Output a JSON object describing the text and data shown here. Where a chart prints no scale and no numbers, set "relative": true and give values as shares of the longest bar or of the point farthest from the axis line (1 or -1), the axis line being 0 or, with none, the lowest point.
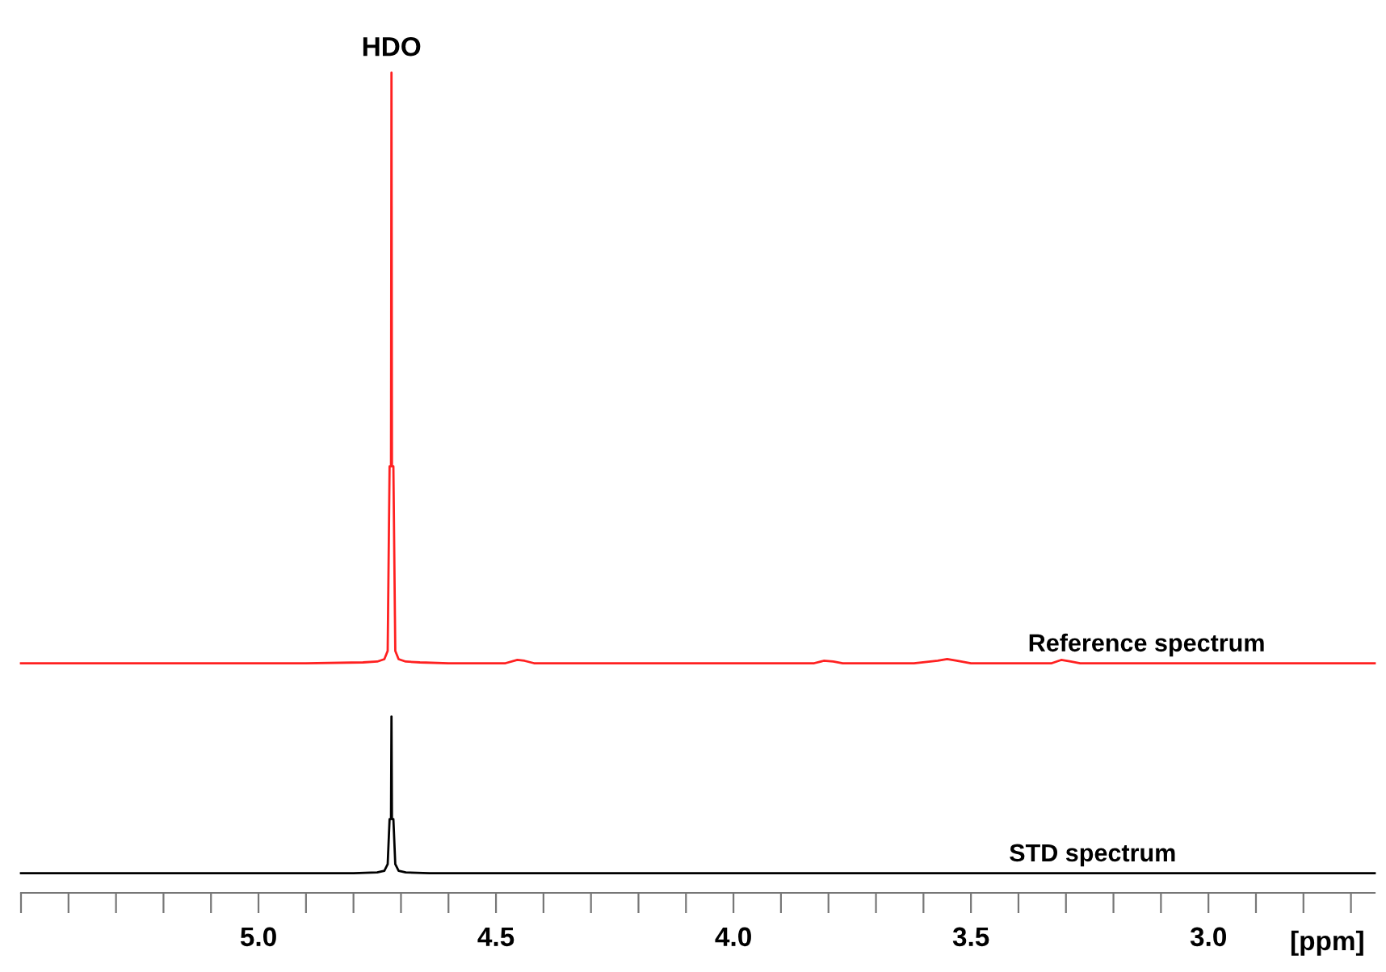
{
  "chart_data": {
    "type": "line",
    "relative": true,
    "xlim": [
      5.5,
      2.65
    ],
    "xlabel": "[ppm]",
    "annotations": [
      {
        "text": "HDO",
        "x": 4.72,
        "y": 1
      }
    ],
    "xticks": [
      {
        "value": 5.5,
        "label": null
      },
      {
        "value": 5.4,
        "label": null
      },
      {
        "value": 5.3,
        "label": null
      },
      {
        "value": 5.2,
        "label": null
      },
      {
        "value": 5.1,
        "label": null
      },
      {
        "value": 5.0,
        "label": "5.0"
      },
      {
        "value": 4.9,
        "label": null
      },
      {
        "value": 4.8,
        "label": null
      },
      {
        "value": 4.7,
        "label": null
      },
      {
        "value": 4.6,
        "label": null
      },
      4.5,
      {
        "value": 4.4,
        "label": null
      },
      {
        "value": 4.3,
        "label": null
      },
      {
        "value": 4.2,
        "label": null
      },
      {
        "value": 4.1,
        "label": null
      },
      {
        "value": 4.0,
        "label": "4.0"
      },
      {
        "value": 3.9,
        "label": null
      },
      {
        "value": 3.8,
        "label": null
      },
      {
        "value": 3.7,
        "label": null
      },
      {
        "value": 3.6,
        "label": null
      },
      3.5,
      {
        "value": 3.4,
        "label": null
      },
      {
        "value": 3.3,
        "label": null
      },
      {
        "value": 3.2,
        "label": null
      },
      {
        "value": 3.1,
        "label": null
      },
      {
        "value": 3.0,
        "label": "3.0"
      },
      {
        "value": 2.9,
        "label": null
      },
      {
        "value": 2.8,
        "label": null
      },
      {
        "value": 2.7,
        "label": null
      }
    ],
    "series": [
      {
        "name": "Reference spectrum",
        "color": "#ff2020",
        "x": [
          5.5,
          4.9,
          4.78,
          4.75,
          4.735,
          4.728,
          4.724,
          4.721,
          4.72,
          4.719,
          4.716,
          4.712,
          4.705,
          4.69,
          4.66,
          4.6,
          4.48,
          4.455,
          4.44,
          4.42,
          4.2,
          3.83,
          3.81,
          3.79,
          3.77,
          3.62,
          3.57,
          3.55,
          3.53,
          3.5,
          3.33,
          3.31,
          3.29,
          3.27,
          2.65
        ],
        "values": [
          0.28,
          0.28,
          0.281,
          0.282,
          0.285,
          0.295,
          0.52,
          0.52,
          1,
          0.52,
          0.52,
          0.295,
          0.285,
          0.282,
          0.281,
          0.28,
          0.28,
          0.284,
          0.283,
          0.28,
          0.28,
          0.28,
          0.283,
          0.282,
          0.28,
          0.28,
          0.283,
          0.285,
          0.283,
          0.28,
          0.28,
          0.284,
          0.282,
          0.28,
          0.28
        ]
      },
      {
        "name": "STD spectrum",
        "color": "#000000",
        "x": [
          5.5,
          4.8,
          4.75,
          4.735,
          4.728,
          4.724,
          4.721,
          4.72,
          4.719,
          4.716,
          4.712,
          4.705,
          4.69,
          4.64,
          2.65
        ],
        "values": [
          0.024,
          0.024,
          0.025,
          0.027,
          0.035,
          0.09,
          0.09,
          0.215,
          0.09,
          0.09,
          0.035,
          0.027,
          0.025,
          0.024,
          0.024
        ]
      }
    ]
  }
}
